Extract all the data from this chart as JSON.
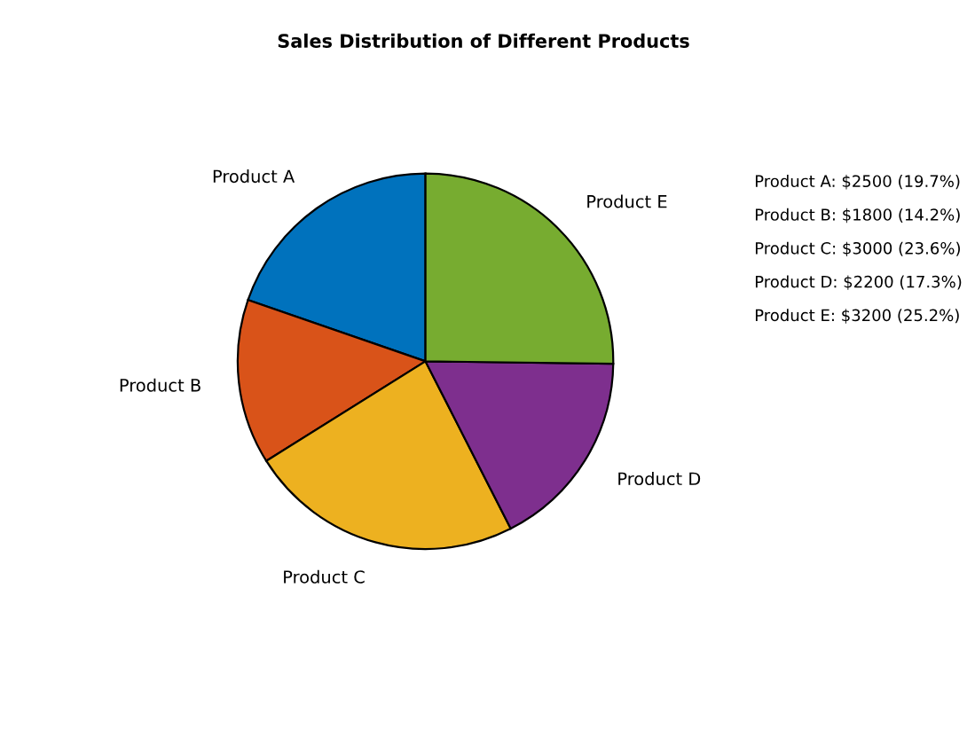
{
  "chart_data": {
    "type": "pie",
    "title": "Sales Distribution of Different Products",
    "categories": [
      "Product A",
      "Product B",
      "Product C",
      "Product D",
      "Product E"
    ],
    "values": [
      19.7,
      14.2,
      23.6,
      17.3,
      25.2
    ],
    "colors": [
      "#0072bd",
      "#d95319",
      "#edb120",
      "#7e2f8e",
      "#77ac30"
    ],
    "annotations": [
      "Product A: $2500 (19.7%)",
      "Product B: $1800 (14.2%)",
      "Product C: $3000 (23.6%)",
      "Product D: $2200 (17.3%)",
      "Product E: $3200 (25.2%)"
    ]
  }
}
